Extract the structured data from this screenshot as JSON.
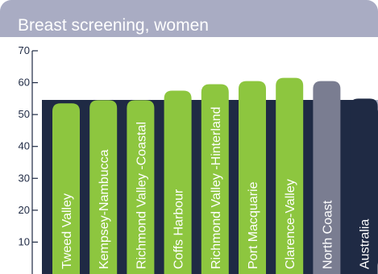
{
  "chart_data": {
    "type": "bar",
    "title": "Breast screening, women",
    "categories": [
      "Tweed Valley",
      "Kempsey-Nambucca",
      "Richmond Valley -Coastal",
      "Coffs Harbour",
      "Richmond Valley -Hinterland",
      "Port Macquarie",
      "Clarence-Valley",
      "North Coast",
      "Australia"
    ],
    "values": [
      53.5,
      54.5,
      54.5,
      57.5,
      59.5,
      60.5,
      61.5,
      60.5,
      55
    ],
    "bar_colors": [
      "#8dc63f",
      "#8dc63f",
      "#8dc63f",
      "#8dc63f",
      "#8dc63f",
      "#8dc63f",
      "#8dc63f",
      "#7a7d91",
      "#1f2a44"
    ],
    "yticks": [
      10,
      20,
      30,
      40,
      50,
      60,
      70
    ],
    "ylim": [
      0,
      70
    ],
    "xlabel": "",
    "ylabel": "",
    "grid": false,
    "legend": "none",
    "colors": {
      "panel": "#1f2a44",
      "header": "#a9acc3",
      "green": "#8dc63f",
      "gray": "#7a7d91",
      "axis": "#1f2a44"
    }
  }
}
